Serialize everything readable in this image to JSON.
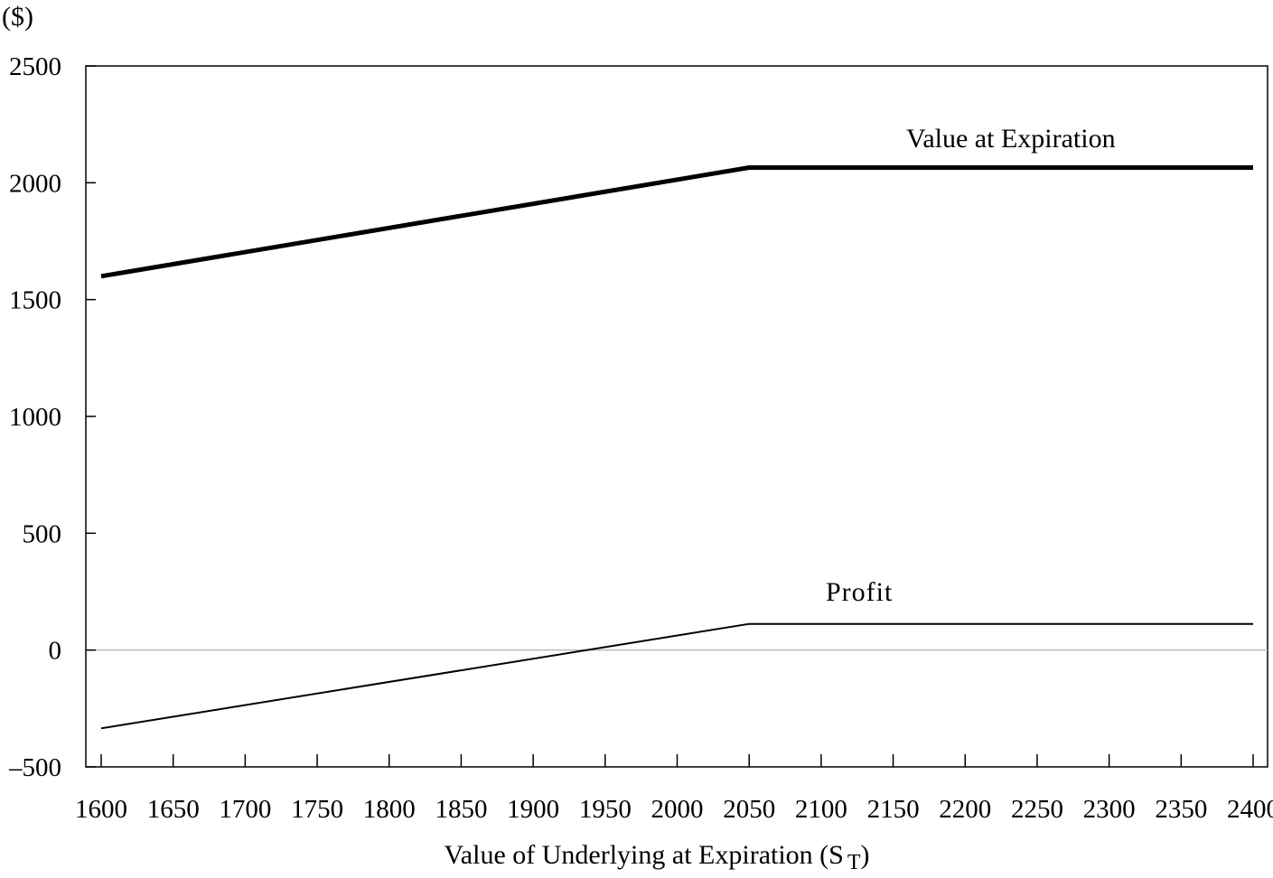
{
  "chart_data": {
    "type": "line",
    "y_unit_label": "($)",
    "xlabel": "Value of Underlying at Expiration (S",
    "xlabel_subscript": "T",
    "xlabel_close": ")",
    "xlim": [
      1600,
      2400
    ],
    "ylim": [
      -500,
      2500
    ],
    "x_ticks": [
      "1600",
      "1650",
      "1700",
      "1750",
      "1800",
      "1850",
      "1900",
      "1950",
      "2000",
      "2050",
      "2100",
      "2150",
      "2200",
      "2250",
      "2300",
      "2350",
      "2400"
    ],
    "y_ticks": [
      "2500",
      "2000",
      "1500",
      "1000",
      "500",
      "0",
      "–500"
    ],
    "y_tick_values": [
      2500,
      2000,
      1500,
      1000,
      500,
      0,
      -500
    ],
    "grid": false,
    "zero_line": true,
    "series": [
      {
        "name": "Value at Expiration",
        "x": [
          1600,
          2050,
          2400
        ],
        "y": [
          1600,
          2065,
          2065
        ],
        "color": "#000000"
      },
      {
        "name": "Profit",
        "x": [
          1600,
          2050,
          2400
        ],
        "y": [
          -335,
          112,
          112
        ],
        "color": "#000000"
      }
    ]
  }
}
